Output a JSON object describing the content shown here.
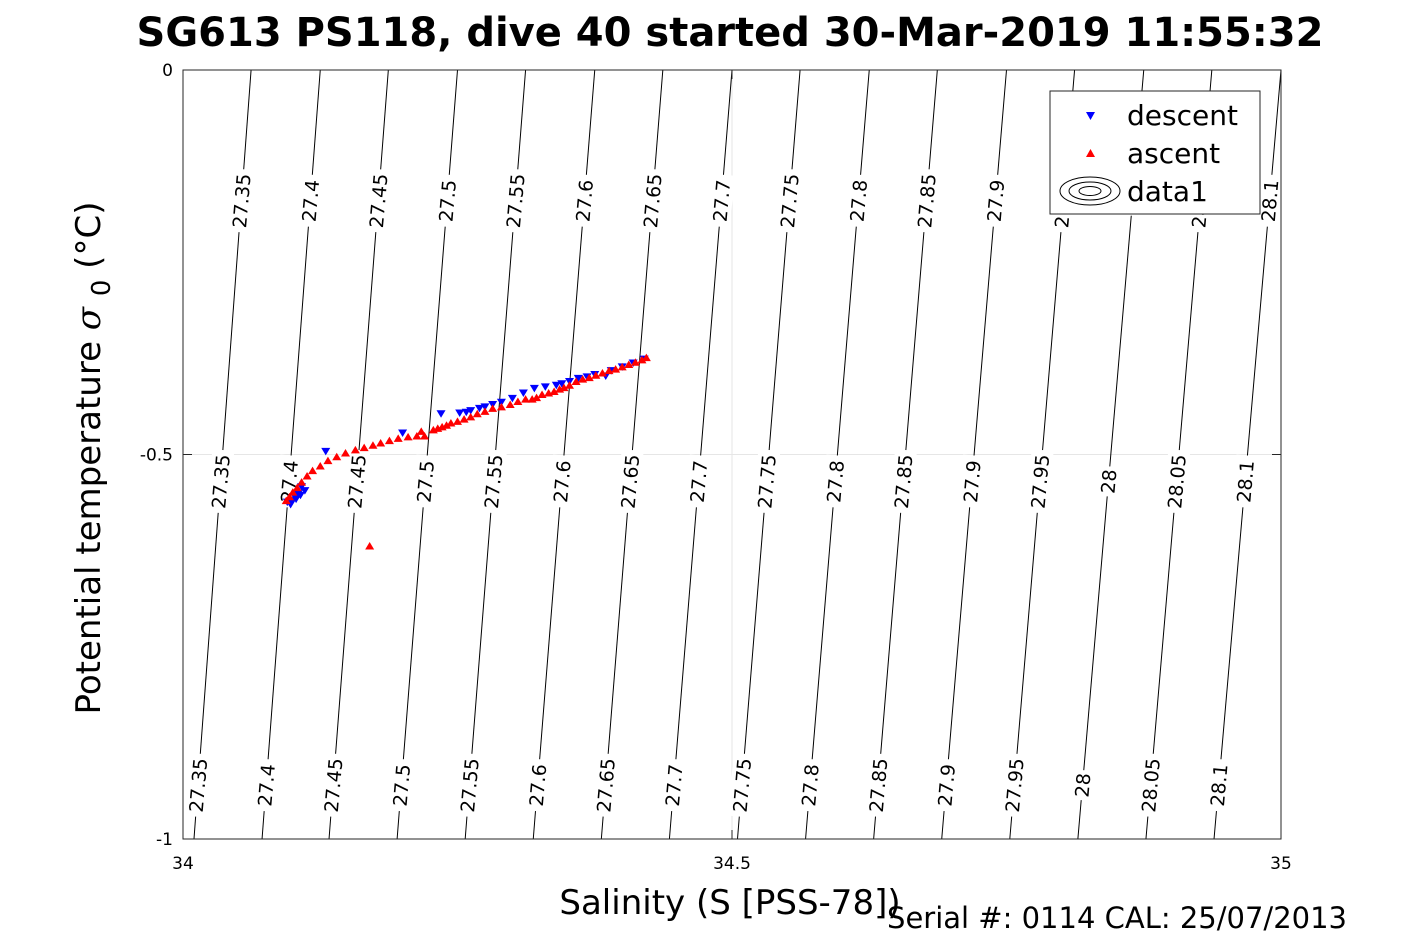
{
  "chart_data": {
    "type": "scatter",
    "title": "SG613 PS118, dive 40 started 30-Mar-2019 11:55:32",
    "xlabel": "Salinity (S [PSS-78])",
    "ylabel": "Potential temperature",
    "ylabel_symbol": "σ",
    "ylabel_subscript": "0",
    "ylabel_unit": "(°C)",
    "xlim": [
      34,
      35
    ],
    "ylim": [
      -1,
      0
    ],
    "xticks": [
      "34",
      "34.5",
      "35"
    ],
    "yticks": [
      "0",
      "-0.5",
      "-1"
    ],
    "grid": true,
    "legend_position": "top-right",
    "legend": [
      "descent",
      "ascent",
      "data1"
    ],
    "footer": "Serial #: 0114  CAL: 25/07/2013",
    "colors": {
      "descent": "#0000ff",
      "ascent": "#ff0000",
      "contour": "#000000"
    },
    "density_contours": [
      {
        "value": "27.35",
        "s_top": 34.062,
        "s_bottom": 34.01
      },
      {
        "value": "27.4",
        "s_top": 34.125,
        "s_bottom": 34.072
      },
      {
        "value": "27.45",
        "s_top": 34.187,
        "s_bottom": 34.133
      },
      {
        "value": "27.5",
        "s_top": 34.25,
        "s_bottom": 34.195
      },
      {
        "value": "27.55",
        "s_top": 34.312,
        "s_bottom": 34.257
      },
      {
        "value": "27.6",
        "s_top": 34.375,
        "s_bottom": 34.319
      },
      {
        "value": "27.65",
        "s_top": 34.437,
        "s_bottom": 34.381
      },
      {
        "value": "27.7",
        "s_top": 34.5,
        "s_bottom": 34.443
      },
      {
        "value": "27.75",
        "s_top": 34.562,
        "s_bottom": 34.505
      },
      {
        "value": "27.8",
        "s_top": 34.625,
        "s_bottom": 34.567
      },
      {
        "value": "27.85",
        "s_top": 34.687,
        "s_bottom": 34.629
      },
      {
        "value": "27.9",
        "s_top": 34.75,
        "s_bottom": 34.691
      },
      {
        "value": "27.95",
        "s_top": 34.812,
        "s_bottom": 34.753
      },
      {
        "value": "28",
        "s_top": 34.875,
        "s_bottom": 34.815
      },
      {
        "value": "28.05",
        "s_top": 34.937,
        "s_bottom": 34.877
      },
      {
        "value": "28.1",
        "s_top": 35.0,
        "s_bottom": 34.939
      }
    ],
    "series": [
      {
        "name": "descent",
        "marker": "triangle-down",
        "x": [
          34.095,
          34.099,
          34.103,
          34.107,
          34.111,
          34.098,
          34.105,
          34.108,
          34.102,
          34.13,
          34.2,
          34.235,
          34.252,
          34.258,
          34.262,
          34.27,
          34.275,
          34.282,
          34.29,
          34.3,
          34.31,
          34.32,
          34.33,
          34.34,
          34.345,
          34.352,
          34.36,
          34.368,
          34.375,
          34.39,
          34.4,
          34.41,
          34.42,
          34.385
        ],
        "y": [
          -0.562,
          -0.56,
          -0.558,
          -0.553,
          -0.547,
          -0.565,
          -0.551,
          -0.542,
          -0.555,
          -0.496,
          -0.472,
          -0.447,
          -0.446,
          -0.445,
          -0.443,
          -0.44,
          -0.438,
          -0.435,
          -0.432,
          -0.427,
          -0.42,
          -0.414,
          -0.412,
          -0.41,
          -0.408,
          -0.405,
          -0.401,
          -0.399,
          -0.396,
          -0.391,
          -0.386,
          -0.381,
          -0.376,
          -0.398
        ]
      },
      {
        "name": "ascent",
        "marker": "triangle-up",
        "x": [
          34.094,
          34.097,
          34.1,
          34.104,
          34.108,
          34.113,
          34.118,
          34.125,
          34.132,
          34.14,
          34.148,
          34.157,
          34.165,
          34.173,
          34.18,
          34.188,
          34.196,
          34.205,
          34.213,
          34.22,
          34.217,
          34.17,
          34.228,
          34.232,
          34.236,
          34.24,
          34.244,
          34.25,
          34.256,
          34.262,
          34.268,
          34.275,
          34.282,
          34.29,
          34.298,
          34.305,
          34.312,
          34.318,
          34.322,
          34.327,
          34.333,
          34.338,
          34.343,
          34.347,
          34.352,
          34.358,
          34.364,
          34.37,
          34.376,
          34.382,
          34.388,
          34.394,
          34.4,
          34.406,
          34.412,
          34.418,
          34.422
        ],
        "y": [
          -0.56,
          -0.555,
          -0.549,
          -0.543,
          -0.536,
          -0.528,
          -0.521,
          -0.515,
          -0.508,
          -0.503,
          -0.498,
          -0.494,
          -0.491,
          -0.488,
          -0.485,
          -0.482,
          -0.479,
          -0.477,
          -0.476,
          -0.476,
          -0.47,
          -0.619,
          -0.468,
          -0.466,
          -0.464,
          -0.462,
          -0.459,
          -0.457,
          -0.454,
          -0.451,
          -0.447,
          -0.444,
          -0.44,
          -0.438,
          -0.435,
          -0.431,
          -0.428,
          -0.428,
          -0.426,
          -0.422,
          -0.42,
          -0.418,
          -0.415,
          -0.413,
          -0.41,
          -0.405,
          -0.402,
          -0.4,
          -0.397,
          -0.394,
          -0.391,
          -0.389,
          -0.386,
          -0.383,
          -0.38,
          -0.377,
          -0.374
        ]
      }
    ]
  }
}
